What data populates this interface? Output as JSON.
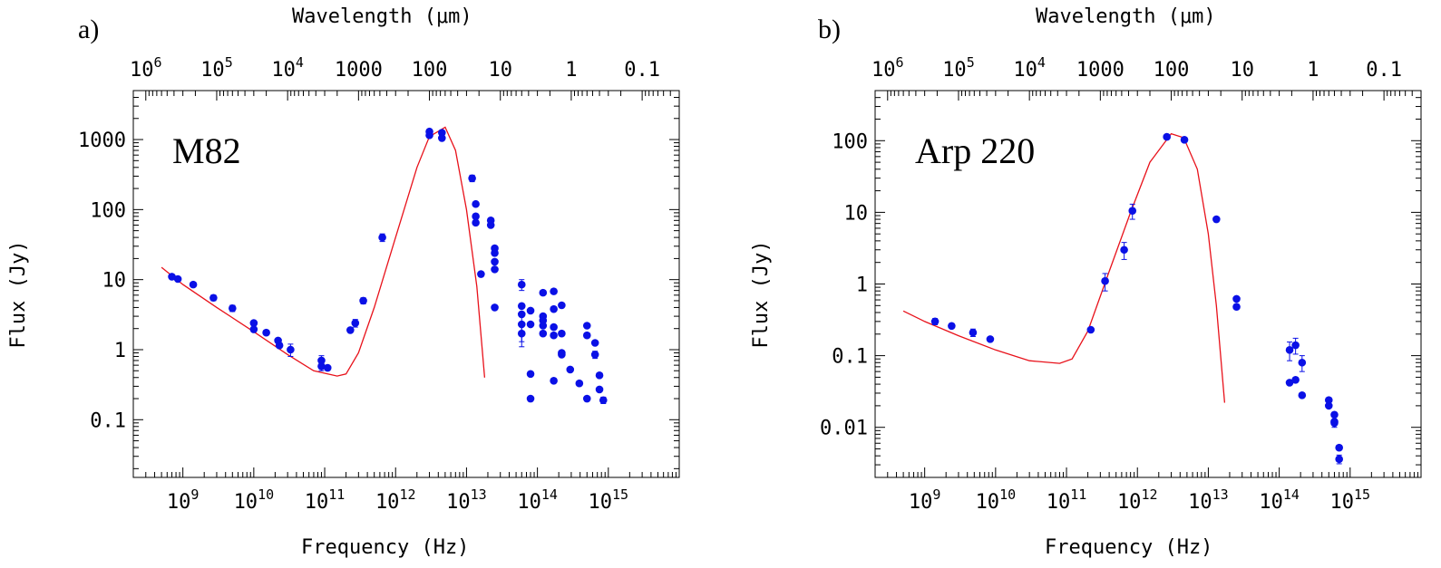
{
  "chart_data": [
    {
      "type": "scatter",
      "panel_label": "a)",
      "object_label": "M82",
      "xlabel": "Frequency  (Hz)",
      "ylabel": "Flux  (Jy)",
      "top_xlabel": "Wavelength  (μm)",
      "xscale": "log",
      "yscale": "log",
      "xlim": [
        200000000.0,
        1e+16
      ],
      "ylim": [
        0.015,
        5000
      ],
      "x_ticks": [
        {
          "value": 1000000000.0,
          "base": "10",
          "exp": "9"
        },
        {
          "value": 10000000000.0,
          "base": "10",
          "exp": "10"
        },
        {
          "value": 100000000000.0,
          "base": "10",
          "exp": "11"
        },
        {
          "value": 1000000000000.0,
          "base": "10",
          "exp": "12"
        },
        {
          "value": 10000000000000.0,
          "base": "10",
          "exp": "13"
        },
        {
          "value": 100000000000000.0,
          "base": "10",
          "exp": "14"
        },
        {
          "value": 1000000000000000.0,
          "base": "10",
          "exp": "15"
        }
      ],
      "y_ticks": [
        {
          "value": 0.1,
          "label": "0.1"
        },
        {
          "value": 1,
          "label": "1"
        },
        {
          "value": 10,
          "label": "10"
        },
        {
          "value": 100,
          "label": "100"
        },
        {
          "value": 1000,
          "label": "1000"
        }
      ],
      "top_ticks": [
        {
          "value": 1000000.0,
          "base": "10",
          "exp": "6"
        },
        {
          "value": 100000.0,
          "base": "10",
          "exp": "5"
        },
        {
          "value": 10000.0,
          "base": "10",
          "exp": "4"
        },
        {
          "value": 1000,
          "label": "1000"
        },
        {
          "value": 100,
          "label": "100"
        },
        {
          "value": 10,
          "label": "10"
        },
        {
          "value": 1,
          "label": "1"
        },
        {
          "value": 0.1,
          "label": "0.1"
        }
      ],
      "model": {
        "name": "model",
        "color": "#e8111a",
        "points": [
          [
            500000000.0,
            15
          ],
          [
            1000000000.0,
            8.5
          ],
          [
            3000000000.0,
            4
          ],
          [
            10000000000.0,
            1.8
          ],
          [
            30000000000.0,
            0.85
          ],
          [
            70000000000.0,
            0.5
          ],
          [
            150000000000.0,
            0.42
          ],
          [
            200000000000.0,
            0.45
          ],
          [
            300000000000.0,
            0.9
          ],
          [
            500000000000.0,
            4
          ],
          [
            1000000000000.0,
            40
          ],
          [
            2000000000000.0,
            400
          ],
          [
            3000000000000.0,
            1100
          ],
          [
            5000000000000.0,
            1500
          ],
          [
            7000000000000.0,
            700
          ],
          [
            10000000000000.0,
            100
          ],
          [
            14000000000000.0,
            8
          ],
          [
            18000000000000.0,
            0.4
          ]
        ]
      },
      "points": [
        [
          700000000.0,
          11,
          0.5
        ],
        [
          850000000.0,
          10.2,
          0
        ],
        [
          1400000000.0,
          8.5,
          0
        ],
        [
          2700000000.0,
          5.5,
          0.5
        ],
        [
          5000000000.0,
          3.9,
          0.4
        ],
        [
          10000000000.0,
          2.4,
          0
        ],
        [
          10000000000.0,
          1.95,
          0
        ],
        [
          15000000000.0,
          1.75,
          0
        ],
        [
          22000000000.0,
          1.35,
          0
        ],
        [
          23000000000.0,
          1.15,
          0
        ],
        [
          33000000000.0,
          1.0,
          0.2
        ],
        [
          90000000000.0,
          0.7,
          0.12
        ],
        [
          90000000000.0,
          0.58,
          0.08
        ],
        [
          110000000000.0,
          0.55,
          0
        ],
        [
          230000000000.0,
          1.9,
          0
        ],
        [
          270000000000.0,
          2.4,
          0.3
        ],
        [
          350000000000.0,
          5.0,
          0.5
        ],
        [
          650000000000.0,
          40,
          5
        ],
        [
          3000000000000.0,
          1300,
          0
        ],
        [
          3000000000000.0,
          1150,
          0
        ],
        [
          4500000000000.0,
          1250,
          0
        ],
        [
          4500000000000.0,
          1050,
          0
        ],
        [
          12000000000000.0,
          280,
          30
        ],
        [
          13500000000000.0,
          120,
          0
        ],
        [
          13500000000000.0,
          80,
          0
        ],
        [
          13500000000000.0,
          65,
          0
        ],
        [
          16000000000000.0,
          12,
          0
        ],
        [
          22000000000000.0,
          70,
          0
        ],
        [
          22000000000000.0,
          60,
          0
        ],
        [
          25000000000000.0,
          28,
          0
        ],
        [
          25000000000000.0,
          24,
          0
        ],
        [
          25000000000000.0,
          18,
          0
        ],
        [
          25000000000000.0,
          14,
          0
        ],
        [
          25000000000000.0,
          4.0,
          0
        ],
        [
          60000000000000.0,
          8.5,
          1.5
        ],
        [
          60000000000000.0,
          4.2,
          0
        ],
        [
          60000000000000.0,
          3.2,
          0
        ],
        [
          60000000000000.0,
          2.3,
          1.0
        ],
        [
          60000000000000.0,
          1.7,
          0.6
        ],
        [
          80000000000000.0,
          3.6,
          0
        ],
        [
          80000000000000.0,
          2.3,
          0
        ],
        [
          80000000000000.0,
          0.45,
          0
        ],
        [
          80000000000000.0,
          0.2,
          0
        ],
        [
          120000000000000.0,
          6.5,
          0
        ],
        [
          120000000000000.0,
          3.0,
          0
        ],
        [
          120000000000000.0,
          2.6,
          0
        ],
        [
          120000000000000.0,
          2.2,
          0
        ],
        [
          120000000000000.0,
          1.7,
          0
        ],
        [
          170000000000000.0,
          6.8,
          0
        ],
        [
          170000000000000.0,
          3.8,
          0
        ],
        [
          170000000000000.0,
          2.1,
          0
        ],
        [
          170000000000000.0,
          1.6,
          0
        ],
        [
          170000000000000.0,
          0.36,
          0
        ],
        [
          220000000000000.0,
          4.3,
          0
        ],
        [
          220000000000000.0,
          1.7,
          0
        ],
        [
          220000000000000.0,
          0.9,
          0
        ],
        [
          220000000000000.0,
          0.85,
          0
        ],
        [
          290000000000000.0,
          0.52,
          0
        ],
        [
          390000000000000.0,
          0.33,
          0
        ],
        [
          500000000000000.0,
          2.2,
          0
        ],
        [
          500000000000000.0,
          1.6,
          0
        ],
        [
          500000000000000.0,
          0.2,
          0
        ],
        [
          650000000000000.0,
          1.25,
          0
        ],
        [
          650000000000000.0,
          0.85,
          0.1
        ],
        [
          750000000000000.0,
          0.43,
          0
        ],
        [
          750000000000000.0,
          0.27,
          0
        ],
        [
          850000000000000.0,
          0.19,
          0.02
        ]
      ]
    },
    {
      "type": "scatter",
      "panel_label": "b)",
      "object_label": "Arp 220",
      "xlabel": "Frequency  (Hz)",
      "ylabel": "Flux  (Jy)",
      "top_xlabel": "Wavelength  (μm)",
      "xscale": "log",
      "yscale": "log",
      "xlim": [
        200000000.0,
        1e+16
      ],
      "ylim": [
        0.002,
        500
      ],
      "x_ticks": [
        {
          "value": 1000000000.0,
          "base": "10",
          "exp": "9"
        },
        {
          "value": 10000000000.0,
          "base": "10",
          "exp": "10"
        },
        {
          "value": 100000000000.0,
          "base": "10",
          "exp": "11"
        },
        {
          "value": 1000000000000.0,
          "base": "10",
          "exp": "12"
        },
        {
          "value": 10000000000000.0,
          "base": "10",
          "exp": "13"
        },
        {
          "value": 100000000000000.0,
          "base": "10",
          "exp": "14"
        },
        {
          "value": 1000000000000000.0,
          "base": "10",
          "exp": "15"
        }
      ],
      "y_ticks": [
        {
          "value": 0.01,
          "label": "0.01"
        },
        {
          "value": 0.1,
          "label": "0.1"
        },
        {
          "value": 1,
          "label": "1"
        },
        {
          "value": 10,
          "label": "10"
        },
        {
          "value": 100,
          "label": "100"
        }
      ],
      "top_ticks": [
        {
          "value": 1000000.0,
          "base": "10",
          "exp": "6"
        },
        {
          "value": 100000.0,
          "base": "10",
          "exp": "5"
        },
        {
          "value": 10000.0,
          "base": "10",
          "exp": "4"
        },
        {
          "value": 1000,
          "label": "1000"
        },
        {
          "value": 100,
          "label": "100"
        },
        {
          "value": 10,
          "label": "10"
        },
        {
          "value": 1,
          "label": "1"
        },
        {
          "value": 0.1,
          "label": "0.1"
        }
      ],
      "model": {
        "name": "model",
        "color": "#e8111a",
        "points": [
          [
            500000000.0,
            0.42
          ],
          [
            1000000000.0,
            0.3
          ],
          [
            3000000000.0,
            0.19
          ],
          [
            10000000000.0,
            0.12
          ],
          [
            30000000000.0,
            0.085
          ],
          [
            80000000000.0,
            0.078
          ],
          [
            120000000000.0,
            0.09
          ],
          [
            200000000000.0,
            0.22
          ],
          [
            400000000000.0,
            1.5
          ],
          [
            800000000000.0,
            10
          ],
          [
            1500000000000.0,
            50
          ],
          [
            3000000000000.0,
            125
          ],
          [
            4500000000000.0,
            110
          ],
          [
            7000000000000.0,
            40
          ],
          [
            10000000000000.0,
            5
          ],
          [
            13000000000000.0,
            0.5
          ],
          [
            17000000000000.0,
            0.022
          ]
        ]
      },
      "points": [
        [
          1400000000.0,
          0.3,
          0.03
        ],
        [
          2400000000.0,
          0.26,
          0
        ],
        [
          4800000000.0,
          0.21,
          0.025
        ],
        [
          8400000000.0,
          0.17,
          0
        ],
        [
          220000000000.0,
          0.23,
          0
        ],
        [
          350000000000.0,
          1.1,
          0.3
        ],
        [
          650000000000.0,
          3.0,
          0.8
        ],
        [
          850000000000.0,
          10.5,
          2.5
        ],
        [
          2600000000000.0,
          113,
          0
        ],
        [
          4600000000000.0,
          103,
          0
        ],
        [
          13000000000000.0,
          8,
          0
        ],
        [
          25000000000000.0,
          0.62,
          0
        ],
        [
          25000000000000.0,
          0.48,
          0
        ],
        [
          140000000000000.0,
          0.12,
          0.035
        ],
        [
          140000000000000.0,
          0.042,
          0
        ],
        [
          170000000000000.0,
          0.14,
          0.035
        ],
        [
          170000000000000.0,
          0.046,
          0
        ],
        [
          210000000000000.0,
          0.08,
          0.02
        ],
        [
          210000000000000.0,
          0.028,
          0
        ],
        [
          500000000000000.0,
          0.024,
          0
        ],
        [
          500000000000000.0,
          0.02,
          0
        ],
        [
          600000000000000.0,
          0.015,
          0
        ],
        [
          600000000000000.0,
          0.012,
          0.002
        ],
        [
          600000000000000.0,
          0.0115,
          0
        ],
        [
          700000000000000.0,
          0.0052,
          0
        ],
        [
          700000000000000.0,
          0.0036,
          0.0005
        ]
      ]
    }
  ]
}
